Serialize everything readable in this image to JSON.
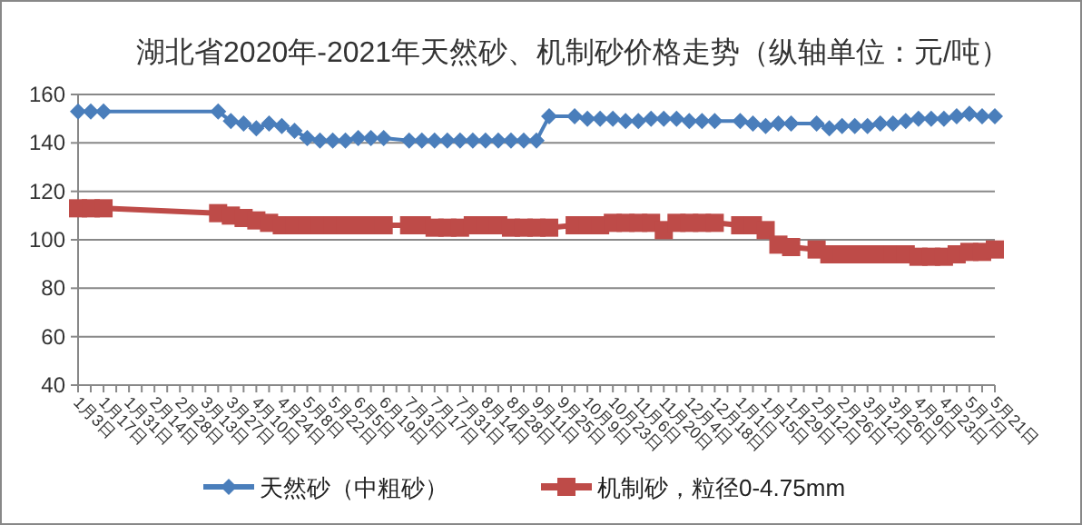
{
  "chart_data": {
    "type": "line",
    "title": "湖北省2020年-2021年天然砂、机制砂价格走势（纵轴单位：元/吨）",
    "categories": [
      "1月3日",
      null,
      "1月17日",
      null,
      "1月31日",
      null,
      "2月14日",
      null,
      "2月28日",
      null,
      "3月13日",
      null,
      "3月27日",
      null,
      "4月10日",
      null,
      "4月24日",
      null,
      "5月8日",
      null,
      "5月22日",
      null,
      "6月5日",
      null,
      "6月19日",
      null,
      "7月3日",
      null,
      "7月17日",
      null,
      "7月31日",
      null,
      "8月14日",
      null,
      "8月28日",
      null,
      "9月11日",
      null,
      "9月25日",
      null,
      "10月9日",
      null,
      "10月23日",
      null,
      "11月6日",
      null,
      "11月20日",
      null,
      "12月4日",
      null,
      "12月18日",
      null,
      "1月1日",
      null,
      "1月15日",
      null,
      "1月29日",
      null,
      "2月12日",
      null,
      "2月26日",
      null,
      "3月12日",
      null,
      "3月26日",
      null,
      "4月9日",
      null,
      "4月23日",
      null,
      "5月7日",
      null,
      "5月21日"
    ],
    "series": [
      {
        "name": "天然砂（中粗砂）",
        "color": "#4a7ebb",
        "marker": "diamond",
        "values": [
          153,
          153,
          153,
          null,
          null,
          null,
          null,
          null,
          null,
          null,
          null,
          153,
          149,
          148,
          146,
          148,
          147,
          145,
          142,
          141,
          141,
          141,
          142,
          142,
          142,
          null,
          141,
          141,
          141,
          141,
          141,
          141,
          141,
          141,
          141,
          141,
          141,
          151,
          null,
          151,
          150,
          150,
          150,
          149,
          149,
          150,
          150,
          150,
          149,
          149,
          149,
          null,
          149,
          148,
          147,
          148,
          148,
          null,
          148,
          146,
          147,
          147,
          147,
          148,
          148,
          149,
          150,
          150,
          150,
          151,
          152,
          151,
          151
        ]
      },
      {
        "name": "机制砂，粒径0-4.75mm",
        "color": "#be4b48",
        "marker": "square",
        "values": [
          113,
          113,
          113,
          null,
          null,
          null,
          null,
          null,
          null,
          null,
          null,
          111,
          110,
          109,
          108,
          107,
          106,
          106,
          106,
          106,
          106,
          106,
          106,
          106,
          106,
          null,
          106,
          106,
          105,
          105,
          105,
          106,
          106,
          106,
          105,
          105,
          105,
          105,
          null,
          106,
          106,
          106,
          107,
          107,
          107,
          107,
          104,
          107,
          107,
          107,
          107,
          null,
          106,
          106,
          104,
          98,
          97,
          null,
          96,
          94,
          94,
          94,
          94,
          94,
          94,
          94,
          93,
          93,
          93,
          94,
          95,
          95,
          96
        ]
      }
    ],
    "ylim": [
      40,
      160
    ],
    "yticks": [
      40,
      60,
      80,
      100,
      120,
      140,
      160
    ],
    "grid": "y",
    "legend": "bottom"
  }
}
